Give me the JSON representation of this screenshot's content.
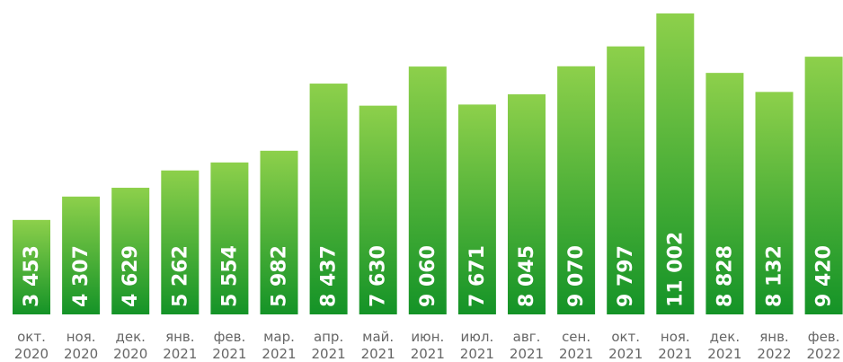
{
  "chart_data": {
    "type": "bar",
    "categories": [
      [
        "окт.",
        "2020"
      ],
      [
        "ноя.",
        "2020"
      ],
      [
        "дек.",
        "2020"
      ],
      [
        "янв.",
        "2021"
      ],
      [
        "фев.",
        "2021"
      ],
      [
        "мар.",
        "2021"
      ],
      [
        "апр.",
        "2021"
      ],
      [
        "май.",
        "2021"
      ],
      [
        "июн.",
        "2021"
      ],
      [
        "июл.",
        "2021"
      ],
      [
        "авг.",
        "2021"
      ],
      [
        "сен.",
        "2021"
      ],
      [
        "окт.",
        "2021"
      ],
      [
        "ноя.",
        "2021"
      ],
      [
        "дек.",
        "2021"
      ],
      [
        "янв.",
        "2022"
      ],
      [
        "фев.",
        "2022"
      ]
    ],
    "values": [
      3453,
      4307,
      4629,
      5262,
      5554,
      5982,
      8437,
      7630,
      9060,
      7671,
      8045,
      9070,
      9797,
      11002,
      8828,
      8132,
      9420
    ],
    "value_labels": [
      "3 453",
      "4 307",
      "4 629",
      "5 262",
      "5 554",
      "5 982",
      "8 437",
      "7 630",
      "9 060",
      "7 671",
      "8 045",
      "9 070",
      "9 797",
      "11 002",
      "8 828",
      "8 132",
      "9 420"
    ],
    "gradient": [
      "#8dd04b",
      "#149327"
    ],
    "ylim": [
      0,
      11000
    ]
  }
}
